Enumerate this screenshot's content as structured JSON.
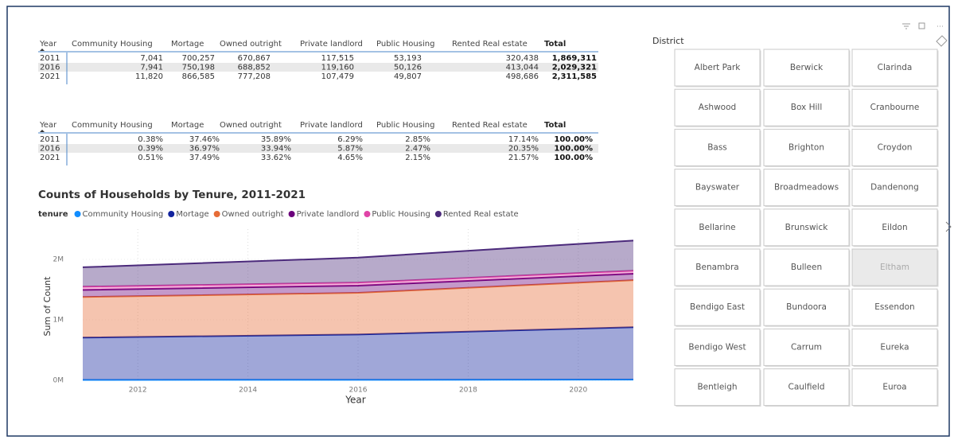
{
  "table1": {
    "header": [
      "Year",
      "Community Housing",
      "Mortage",
      "Owned outright",
      "Private landlord",
      "Public Housing",
      "Rented Real estate",
      "Total"
    ],
    "rows": [
      [
        "2011",
        "7,041",
        "700,257",
        "670,867",
        "117,515",
        "53,193",
        "320,438",
        "1,869,311"
      ],
      [
        "2016",
        "7,941",
        "750,198",
        "688,852",
        "119,160",
        "50,126",
        "413,044",
        "2,029,321"
      ],
      [
        "2021",
        "11,820",
        "866,585",
        "777,208",
        "107,479",
        "49,807",
        "498,686",
        "2,311,585"
      ]
    ]
  },
  "table2": {
    "header": [
      "Year",
      "Community Housing",
      "Mortage",
      "Owned outright",
      "Private landlord",
      "Public Housing",
      "Rented Real estate",
      "Total"
    ],
    "rows": [
      [
        "2011",
        "0.38%",
        "37.46%",
        "35.89%",
        "6.29%",
        "2.85%",
        "17.14%",
        "100.00%"
      ],
      [
        "2016",
        "0.39%",
        "36.97%",
        "33.94%",
        "5.87%",
        "2.47%",
        "20.35%",
        "100.00%"
      ],
      [
        "2021",
        "0.51%",
        "37.49%",
        "33.62%",
        "4.65%",
        "2.15%",
        "21.57%",
        "100.00%"
      ]
    ]
  },
  "chart_data": {
    "type": "stacked-area",
    "title": "Counts of Households by Tenure, 2011-2021",
    "legend_title": "tenure",
    "x_label": "Year",
    "y_label": "Sum of Count",
    "x": [
      2011,
      2016,
      2021
    ],
    "series": [
      {
        "name": "Community Housing",
        "color": "#118DFF",
        "values": [
          7041,
          7941,
          11820
        ]
      },
      {
        "name": "Mortage",
        "color": "#12239E",
        "values": [
          700257,
          750198,
          866585
        ]
      },
      {
        "name": "Owned outright",
        "color": "#E66C37",
        "values": [
          670867,
          688852,
          777208
        ]
      },
      {
        "name": "Private landlord",
        "color": "#6B007B",
        "values": [
          117515,
          119160,
          107479
        ]
      },
      {
        "name": "Public Housing",
        "color": "#E044A7",
        "values": [
          53193,
          50126,
          49807
        ]
      },
      {
        "name": "Rented Real estate",
        "color": "#4B2A7B",
        "values": [
          320438,
          413044,
          498686
        ]
      }
    ],
    "xlim": [
      2011,
      2021
    ],
    "xticks": [
      2012,
      2014,
      2016,
      2018,
      2020
    ],
    "ylim": [
      0,
      2500000
    ],
    "yticks": [
      {
        "value": 0,
        "label": "0M"
      },
      {
        "value": 1000000,
        "label": "1M"
      },
      {
        "value": 2000000,
        "label": "2M"
      }
    ],
    "grid": true
  },
  "slicer": {
    "title": "District",
    "rows": [
      [
        "Albert Park",
        "Berwick",
        "Clarinda"
      ],
      [
        "Ashwood",
        "Box Hill",
        "Cranbourne"
      ],
      [
        "Bass",
        "Brighton",
        "Croydon"
      ],
      [
        "Bayswater",
        "Broadmeadows",
        "Dandenong"
      ],
      [
        "Bellarine",
        "Brunswick",
        "Eildon"
      ],
      [
        "Benambra",
        "Bulleen",
        "Eltham"
      ],
      [
        "Bendigo East",
        "Bundoora",
        "Essendon"
      ],
      [
        "Bendigo West",
        "Carrum",
        "Eureka"
      ],
      [
        "Bentleigh",
        "Caulfield",
        "Euroa"
      ]
    ],
    "highlighted": [
      5,
      2
    ]
  }
}
